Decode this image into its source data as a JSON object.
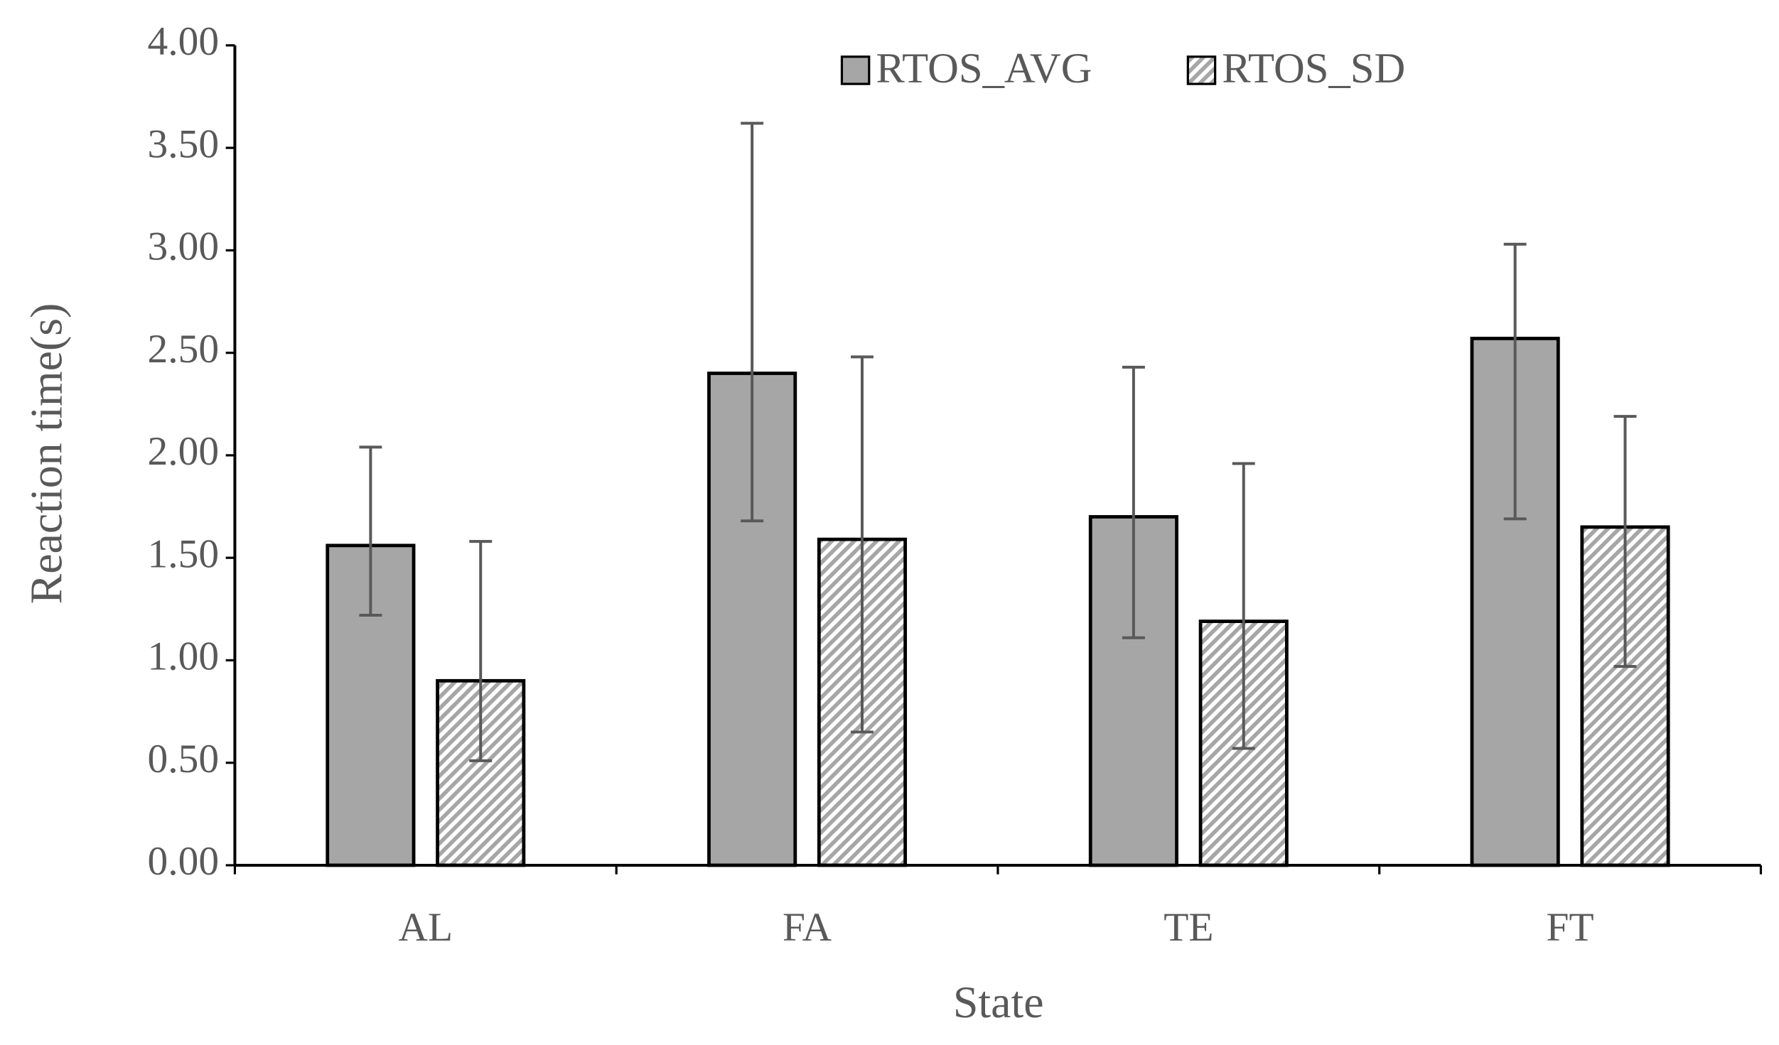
{
  "chart_data": {
    "type": "bar",
    "x_label": "State",
    "y_label": "Reaction time(s)",
    "categories": [
      "AL",
      "FA",
      "TE",
      "FT"
    ],
    "series": [
      {
        "name": "RTOS_AVG",
        "color": "#a6a6a6",
        "hatch": false,
        "values": [
          1.56,
          2.4,
          1.7,
          2.57
        ],
        "error_plus": [
          0.48,
          1.22,
          0.73,
          0.46
        ],
        "error_minus": [
          0.34,
          0.72,
          0.59,
          0.88
        ]
      },
      {
        "name": "RTOS_SD",
        "color": "#a6a6a6",
        "hatch": true,
        "values": [
          0.9,
          1.59,
          1.19,
          1.65
        ],
        "error_plus": [
          0.68,
          0.89,
          0.77,
          0.54
        ],
        "error_minus": [
          0.39,
          0.94,
          0.62,
          0.68
        ]
      }
    ],
    "ylim": [
      0,
      4
    ],
    "yticks": [
      {
        "value": 0,
        "label": "0.00"
      },
      {
        "value": 0.5,
        "label": "0.50"
      },
      {
        "value": 1,
        "label": "1.00"
      },
      {
        "value": 1.5,
        "label": "1.50"
      },
      {
        "value": 2,
        "label": "2.00"
      },
      {
        "value": 2.5,
        "label": "2.50"
      },
      {
        "value": 3,
        "label": "3.00"
      },
      {
        "value": 3.5,
        "label": "3.50"
      },
      {
        "value": 4,
        "label": "4.00"
      }
    ],
    "legend": "top"
  }
}
